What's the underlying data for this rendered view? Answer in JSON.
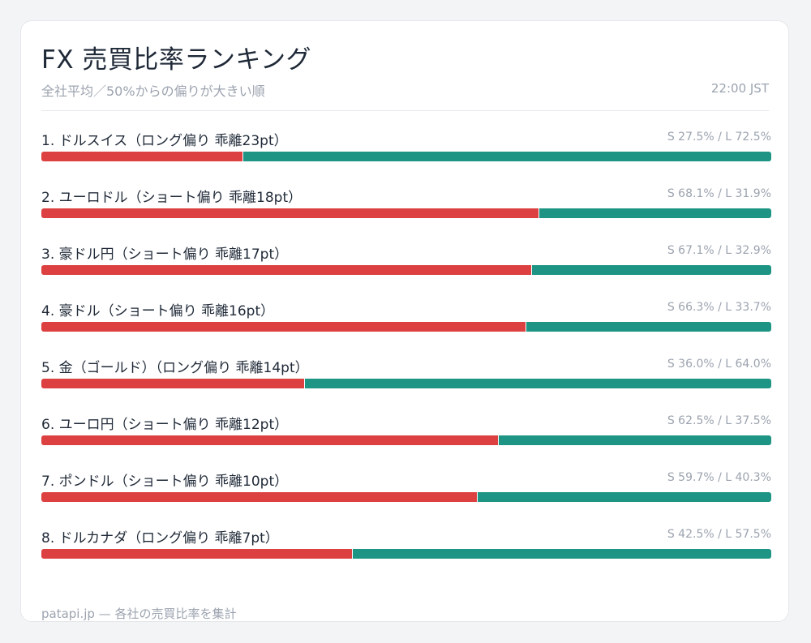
{
  "title": "FX 売買比率ランキング",
  "subtitle": "全社平均／50%からの偏りが大きい順",
  "time": "22:00 JST",
  "footer": "patapi.jp — 各社の売買比率を集計",
  "colors": {
    "short": "#dc4040",
    "long": "#1e9484"
  },
  "chart_data": {
    "type": "bar",
    "orientation": "horizontal-stacked",
    "series": [
      {
        "name": "S",
        "values": [
          27.5,
          68.1,
          67.1,
          66.3,
          36.0,
          62.5,
          59.7,
          42.5
        ]
      },
      {
        "name": "L",
        "values": [
          72.5,
          31.9,
          32.9,
          33.7,
          64.0,
          37.5,
          40.3,
          57.5
        ]
      }
    ],
    "rows": [
      {
        "label": "1. ドルスイス（ロング偏り 乖離23pt）",
        "ratio_text": "S 27.5% / L 72.5%",
        "short": 27.5,
        "long": 72.5
      },
      {
        "label": "2. ユーロドル（ショート偏り 乖離18pt）",
        "ratio_text": "S 68.1% / L 31.9%",
        "short": 68.1,
        "long": 31.9
      },
      {
        "label": "3. 豪ドル円（ショート偏り 乖離17pt）",
        "ratio_text": "S 67.1% / L 32.9%",
        "short": 67.1,
        "long": 32.9
      },
      {
        "label": "4. 豪ドル（ショート偏り 乖離16pt）",
        "ratio_text": "S 66.3% / L 33.7%",
        "short": 66.3,
        "long": 33.7
      },
      {
        "label": "5. 金（ゴールド）（ロング偏り 乖離14pt）",
        "ratio_text": "S 36.0% / L 64.0%",
        "short": 36.0,
        "long": 64.0
      },
      {
        "label": "6. ユーロ円（ショート偏り 乖離12pt）",
        "ratio_text": "S 62.5% / L 37.5%",
        "short": 62.5,
        "long": 37.5
      },
      {
        "label": "7. ポンドル（ショート偏り 乖離10pt）",
        "ratio_text": "S 59.7% / L 40.3%",
        "short": 59.7,
        "long": 40.3
      },
      {
        "label": "8. ドルカナダ（ロング偏り 乖離7pt）",
        "ratio_text": "S 42.5% / L 57.5%",
        "short": 42.5,
        "long": 57.5
      }
    ],
    "xlim": [
      0,
      100
    ],
    "grid": false,
    "legend": "none"
  }
}
